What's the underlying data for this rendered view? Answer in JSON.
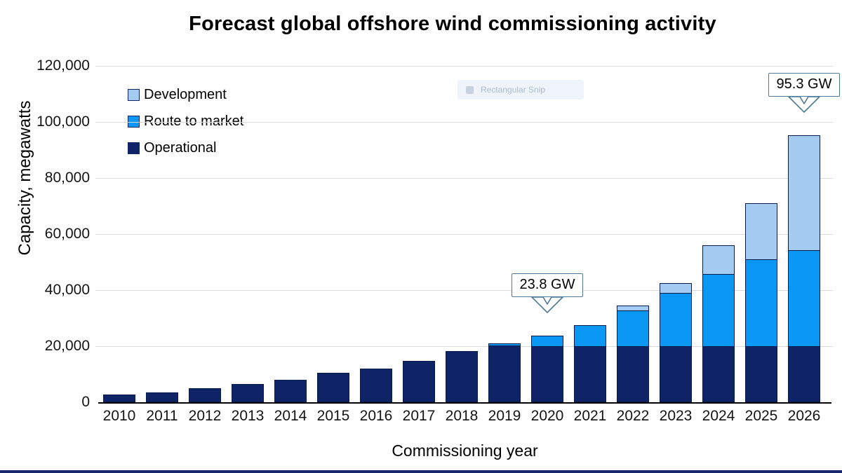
{
  "title": "Forecast global offshore wind commissioning activity",
  "watermark": {
    "label": "Rectangular Snip"
  },
  "legend": [
    {
      "label": "Development",
      "color": "#a4cbf2"
    },
    {
      "label": "Route to market",
      "color": "#0a98f4"
    },
    {
      "label": "Operational",
      "color": "#0f2467"
    }
  ],
  "annotations": [
    {
      "label": "23.8 GW",
      "year": "2020"
    },
    {
      "label": "95.3 GW",
      "year": "2026"
    }
  ],
  "callout_border_color": "#4d7b99",
  "chart_data": {
    "type": "bar",
    "stacked": true,
    "title": "Forecast global offshore wind commissioning activity",
    "xlabel": "Commissioning year",
    "ylabel": "Capacity, megawatts",
    "ylim": [
      0,
      120000
    ],
    "ytick_interval": 20000,
    "yticks": [
      "120,000",
      "100,000",
      "80,000",
      "60,000",
      "40,000",
      "20,000",
      "0"
    ],
    "grid": true,
    "legend_position": "upper-left",
    "categories": [
      "2010",
      "2011",
      "2012",
      "2013",
      "2014",
      "2015",
      "2016",
      "2017",
      "2018",
      "2019",
      "2020",
      "2021",
      "2022",
      "2023",
      "2024",
      "2025",
      "2026"
    ],
    "series": [
      {
        "name": "Operational",
        "color": "#0f2467",
        "values": [
          2700,
          3600,
          5100,
          6500,
          8100,
          10600,
          12100,
          14800,
          18300,
          20300,
          20000,
          19900,
          20100,
          20100,
          20100,
          20100,
          20100
        ]
      },
      {
        "name": "Route to market",
        "color": "#0a98f4",
        "values": [
          0,
          0,
          0,
          0,
          0,
          0,
          0,
          0,
          0,
          600,
          3800,
          7500,
          12600,
          18900,
          25600,
          30900,
          34200
        ]
      },
      {
        "name": "Development",
        "color": "#a4cbf2",
        "values": [
          0,
          0,
          0,
          0,
          0,
          0,
          0,
          0,
          0,
          0,
          0,
          0,
          1700,
          3600,
          10400,
          19900,
          41000
        ]
      }
    ],
    "totals_gw_annotated": {
      "2020": 23.8,
      "2026": 95.3
    }
  }
}
